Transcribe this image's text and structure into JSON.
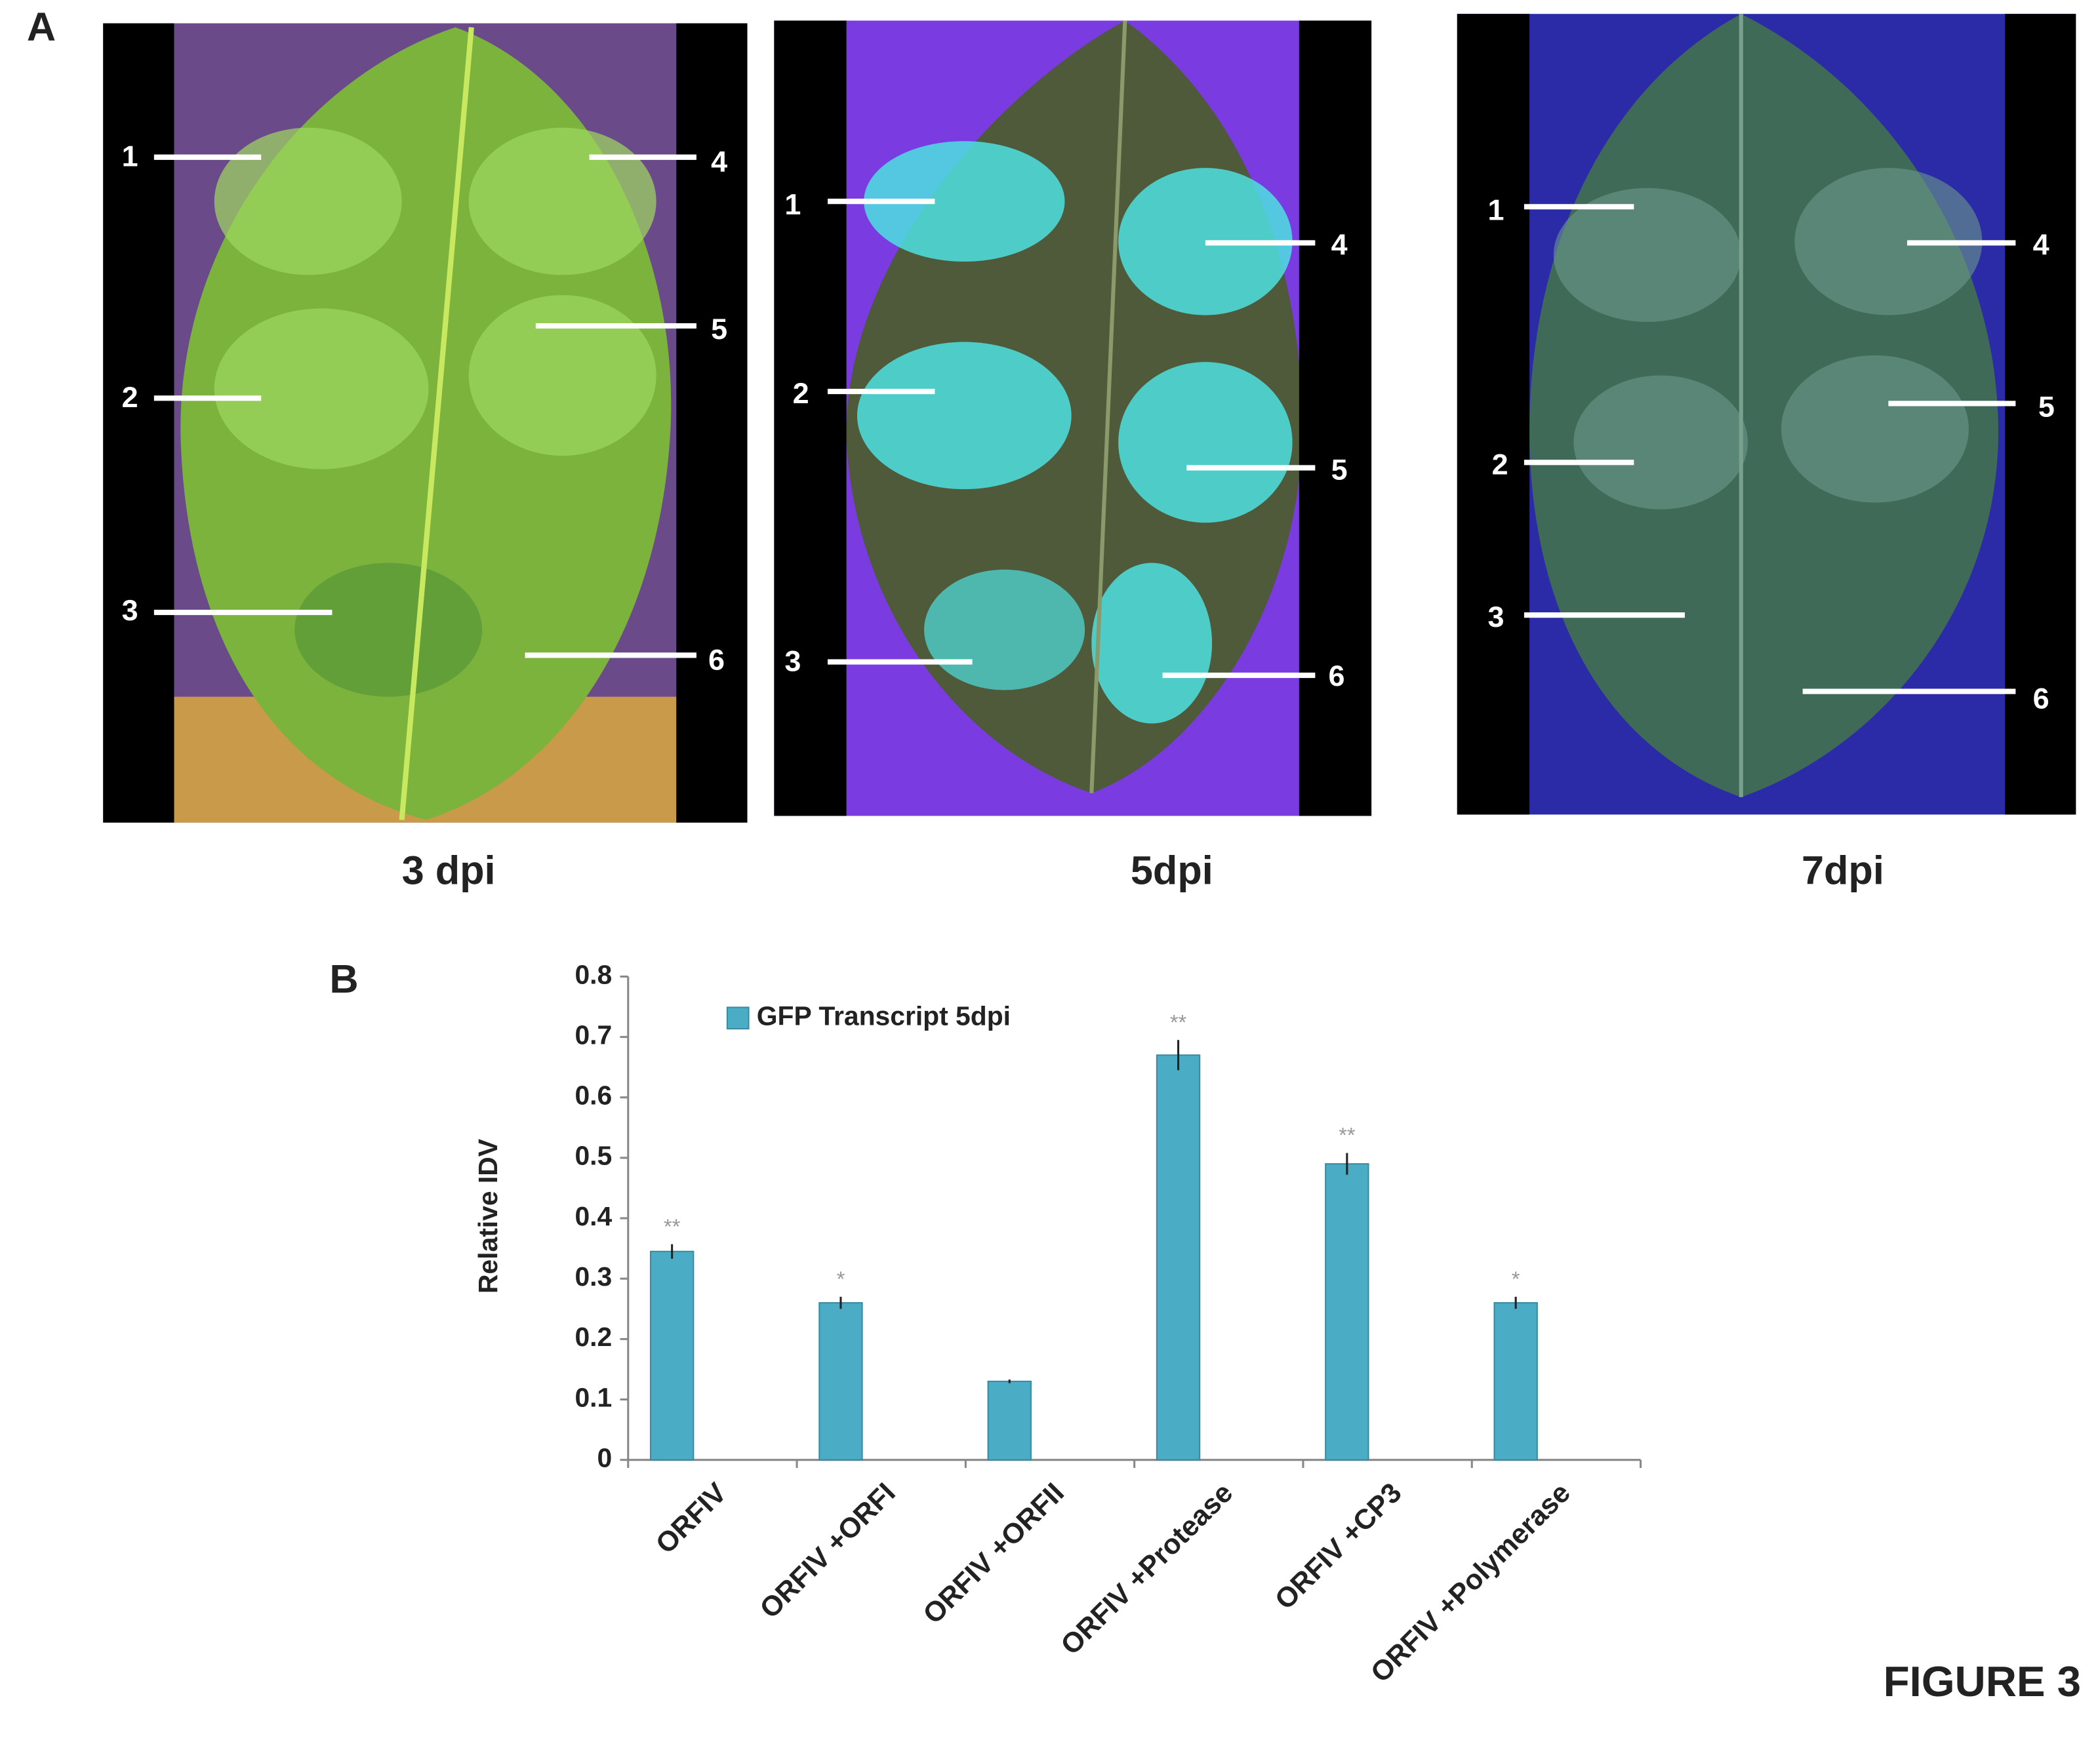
{
  "panel_a": {
    "label": "A",
    "panels": [
      {
        "caption": "3 dpi",
        "labels": [
          "1",
          "2",
          "3",
          "4",
          "5",
          "6"
        ]
      },
      {
        "caption": "5dpi",
        "labels": [
          "1",
          "2",
          "3",
          "4",
          "5",
          "6"
        ]
      },
      {
        "caption": "7dpi",
        "labels": [
          "1",
          "2",
          "3",
          "4",
          "5",
          "6"
        ]
      }
    ]
  },
  "panel_b_label": "B",
  "figure_label": "FIGURE 3",
  "chart_data": {
    "type": "bar",
    "y_label": "Relative IDV",
    "categories": [
      "ORFIV",
      "ORFIV +ORFI",
      "ORFIV +ORFII",
      "ORFIV +Protease",
      "ORFIV +CP3",
      "ORFIV +Polymerase"
    ],
    "series": [
      {
        "name": "GFP Transcript 5dpi",
        "color": "#4bacc6",
        "values": [
          0.345,
          0.26,
          0.13,
          0.67,
          0.49,
          0.26
        ],
        "errors": [
          0.012,
          0.01,
          0.003,
          0.025,
          0.018,
          0.01
        ]
      }
    ],
    "annotations": [
      "**",
      "*",
      null,
      "**",
      "**",
      "*"
    ],
    "ylim": [
      0,
      0.8
    ],
    "yticks": [
      0,
      0.1,
      0.2,
      0.3,
      0.4,
      0.5,
      0.6,
      0.7,
      0.8
    ],
    "grid": false,
    "legend": "top-left"
  }
}
